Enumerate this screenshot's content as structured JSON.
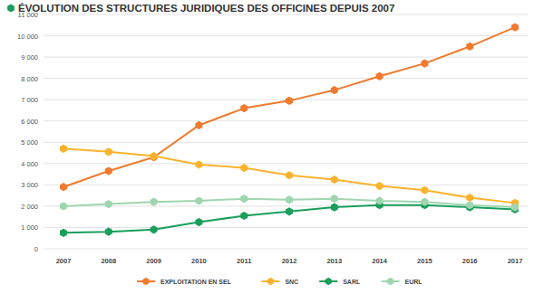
{
  "chart_data": {
    "type": "line",
    "title": "ÉVOLUTION DES STRUCTURES JURIDIQUES DES OFFICINES DEPUIS 2007",
    "categories": [
      "2007",
      "2008",
      "2009",
      "2010",
      "2011",
      "2012",
      "2013",
      "2014",
      "2015",
      "2016",
      "2017"
    ],
    "series": [
      {
        "name": "EXPLOITATION EN SEL",
        "color": "#f07a2e",
        "values": [
          2900,
          3650,
          4300,
          5800,
          6600,
          6950,
          7450,
          8100,
          8700,
          9500,
          10400
        ]
      },
      {
        "name": "SNC",
        "color": "#fbb32e",
        "values": [
          4700,
          4550,
          4350,
          3950,
          3800,
          3450,
          3250,
          2950,
          2750,
          2400,
          2150
        ]
      },
      {
        "name": "SARL",
        "color": "#1a9e5c",
        "values": [
          750,
          800,
          900,
          1250,
          1550,
          1750,
          1950,
          2050,
          2050,
          1950,
          1850
        ]
      },
      {
        "name": "EURL",
        "color": "#9fd6b0",
        "values": [
          2000,
          2100,
          2200,
          2250,
          2350,
          2300,
          2350,
          2250,
          2200,
          2050,
          1950
        ]
      }
    ],
    "ylim": [
      0,
      11000
    ],
    "yticks": [
      0,
      {
        "value": 1000,
        "label": "1 000"
      },
      {
        "value": 2000,
        "label": "2 000"
      },
      {
        "value": 3000,
        "label": "3 000"
      },
      {
        "value": 4000,
        "label": "4 000"
      },
      {
        "value": 5000,
        "label": "5 000"
      },
      {
        "value": 6000,
        "label": "6 000"
      },
      {
        "value": 7000,
        "label": "7 000"
      },
      {
        "value": 8000,
        "label": "8 000"
      },
      {
        "value": 9000,
        "label": "9 000"
      },
      {
        "value": 10000,
        "label": "10 000"
      },
      {
        "value": 11000,
        "label": "11 000"
      }
    ],
    "grid": true,
    "legend": "bottom",
    "marker": "hexagon"
  }
}
